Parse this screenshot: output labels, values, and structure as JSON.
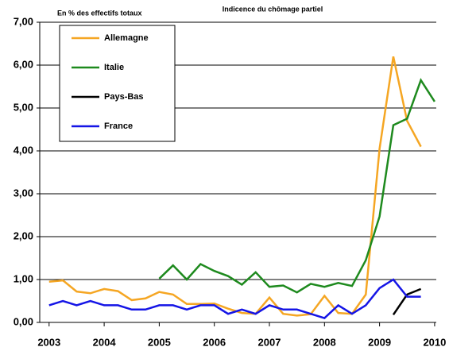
{
  "chart_data": {
    "type": "line",
    "title": "Indicence du chômage partiel",
    "subtitle": "En % des effectifs totaux",
    "x": [
      2003,
      2003.25,
      2003.5,
      2003.75,
      2004,
      2004.25,
      2004.5,
      2004.75,
      2005,
      2005.25,
      2005.5,
      2005.75,
      2006,
      2006.25,
      2006.5,
      2006.75,
      2007,
      2007.25,
      2007.5,
      2007.75,
      2008,
      2008.25,
      2008.5,
      2008.75,
      2009,
      2009.25,
      2009.5,
      2009.75,
      2010
    ],
    "series": [
      {
        "name": "Allemagne",
        "color": "#f5a623",
        "values": [
          0.95,
          0.98,
          0.72,
          0.68,
          0.78,
          0.73,
          0.52,
          0.56,
          0.71,
          0.65,
          0.43,
          0.43,
          0.44,
          0.32,
          0.22,
          0.2,
          0.58,
          0.2,
          0.16,
          0.19,
          0.62,
          0.22,
          0.2,
          0.65,
          4.05,
          6.2,
          4.7,
          4.1,
          null
        ]
      },
      {
        "name": "Italie",
        "color": "#1e8a1e",
        "values": [
          null,
          null,
          null,
          null,
          null,
          null,
          null,
          null,
          1.02,
          1.33,
          1.0,
          1.36,
          1.2,
          1.08,
          0.88,
          1.17,
          0.83,
          0.86,
          0.7,
          0.9,
          0.83,
          0.92,
          0.85,
          1.45,
          2.47,
          4.6,
          4.75,
          5.65,
          5.15
        ]
      },
      {
        "name": "Pays-Bas",
        "color": "#000000",
        "values": [
          null,
          null,
          null,
          null,
          null,
          null,
          null,
          null,
          null,
          null,
          null,
          null,
          null,
          null,
          null,
          null,
          null,
          null,
          null,
          null,
          null,
          null,
          null,
          null,
          null,
          0.18,
          0.65,
          0.78,
          null
        ]
      },
      {
        "name": "France",
        "color": "#1515e6",
        "values": [
          0.4,
          0.5,
          0.4,
          0.5,
          0.4,
          0.4,
          0.3,
          0.3,
          0.4,
          0.4,
          0.3,
          0.4,
          0.4,
          0.2,
          0.3,
          0.2,
          0.4,
          0.3,
          0.3,
          0.2,
          0.1,
          0.4,
          0.2,
          0.4,
          0.8,
          1.0,
          0.6,
          0.6,
          null
        ]
      }
    ],
    "xlim": [
      2002.83,
      2010.03
    ],
    "xticks": [
      2003,
      2004,
      2005,
      2006,
      2007,
      2008,
      2009,
      2010
    ],
    "ylim": [
      0,
      7
    ],
    "yticks": [
      {
        "value": 0,
        "label": "0,00"
      },
      {
        "value": 1,
        "label": "1,00"
      },
      {
        "value": 2,
        "label": "2,00"
      },
      {
        "value": 3,
        "label": "3,00"
      },
      {
        "value": 4,
        "label": "4,00"
      },
      {
        "value": 5,
        "label": "5,00"
      },
      {
        "value": 6,
        "label": "6,00"
      },
      {
        "value": 7,
        "label": "7,00"
      }
    ],
    "grid": true
  }
}
